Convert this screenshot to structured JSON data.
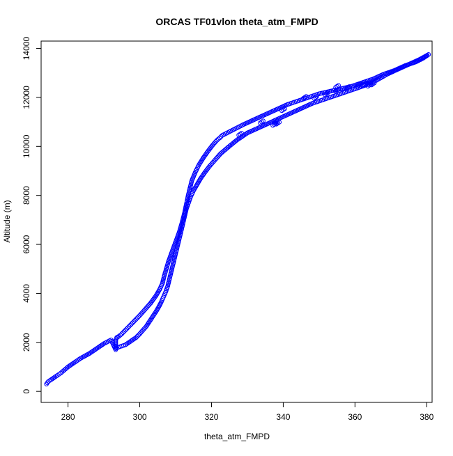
{
  "chart_data": {
    "type": "scatter",
    "title": "ORCAS TF01vlon theta_atm_FMPD",
    "xlabel": "theta_atm_FMPD",
    "ylabel": "Altitude (m)",
    "xlim": [
      272.5,
      381.5
    ],
    "ylim": [
      -450,
      14300
    ],
    "x_ticks": [
      280,
      300,
      320,
      340,
      360,
      380
    ],
    "y_ticks": [
      0,
      2000,
      4000,
      6000,
      8000,
      10000,
      12000,
      14000
    ],
    "grid": false,
    "legend": "none",
    "marker": "open-circle",
    "color": "#0000ff",
    "series": [
      {
        "name": "",
        "x": [
          274.0,
          274.5,
          275.0,
          276.0,
          277.0,
          277.5,
          278.0,
          280.0,
          282.0,
          283.5,
          286.0,
          288.0,
          290.0,
          292.0,
          293.3,
          293.3,
          293.3,
          293.3,
          293.3,
          293.6,
          294.2,
          295.0,
          296.0,
          297.0,
          298.0,
          299.0,
          300.0,
          301.5,
          303.0,
          304.5,
          305.5,
          306.3,
          306.8,
          307.4,
          308.0,
          309.0,
          310.0,
          311.0,
          311.8,
          312.5,
          313.0,
          313.5,
          314.0,
          314.5,
          315.5,
          316.5,
          317.8,
          319.0,
          320.3,
          321.5,
          322.3,
          323.0,
          325.0,
          327.0,
          329.0,
          332.0,
          335.0,
          338.0,
          341.0,
          344.0,
          347.0,
          350.0,
          353.0,
          356.0,
          359.0,
          361.0,
          363.0,
          365.0,
          368.0,
          371.0,
          374.0,
          377.0,
          379.0,
          380.0,
          380.5,
          378.0,
          375.0,
          372.0,
          369.0,
          366.0,
          363.0,
          360.0,
          357.0,
          354.0,
          351.0,
          348.0,
          345.0,
          342.0,
          339.0,
          336.0,
          333.0,
          330.0,
          327.0,
          324.5,
          322.5,
          321.0,
          319.5,
          318.2,
          317.0,
          316.0,
          315.0,
          314.2,
          313.6,
          313.0,
          312.6,
          312.2,
          311.8,
          311.3,
          310.8,
          310.3,
          309.8,
          309.3,
          308.8,
          308.3,
          307.8,
          307.2,
          306.6,
          306.0,
          305.3,
          304.5,
          303.6,
          302.7,
          301.8,
          300.9,
          300.0,
          299.0,
          298.0,
          297.0,
          296.0,
          295.0,
          294.0,
          293.3,
          349.0,
          352.0,
          355.0,
          358.0,
          361.0,
          362.0,
          363.0,
          364.0,
          365.0,
          337.5,
          338.0,
          338.5,
          355.0,
          346.0,
          340.0,
          334.0,
          328.0
        ],
        "y": [
          300,
          400,
          450,
          550,
          650,
          700,
          750,
          1000,
          1200,
          1350,
          1550,
          1750,
          1950,
          2100,
          1700,
          1800,
          1900,
          2000,
          2100,
          2200,
          2250,
          2350,
          2500,
          2650,
          2800,
          2950,
          3100,
          3350,
          3600,
          3900,
          4150,
          4400,
          4700,
          5000,
          5300,
          5700,
          6100,
          6500,
          6900,
          7300,
          7650,
          8000,
          8300,
          8600,
          8950,
          9250,
          9550,
          9800,
          10050,
          10250,
          10350,
          10450,
          10600,
          10750,
          10900,
          11100,
          11300,
          11500,
          11700,
          11850,
          12000,
          12150,
          12250,
          12350,
          12450,
          12550,
          12650,
          12750,
          12950,
          13100,
          13300,
          13450,
          13600,
          13700,
          13750,
          13550,
          13350,
          13150,
          12950,
          12700,
          12500,
          12350,
          12200,
          12050,
          11900,
          11750,
          11550,
          11350,
          11150,
          10950,
          10750,
          10550,
          10250,
          9950,
          9700,
          9450,
          9200,
          8950,
          8700,
          8450,
          8200,
          7950,
          7700,
          7450,
          7200,
          6950,
          6700,
          6400,
          6100,
          5800,
          5500,
          5200,
          4900,
          4600,
          4300,
          4050,
          3850,
          3650,
          3450,
          3250,
          3050,
          2850,
          2650,
          2500,
          2350,
          2200,
          2100,
          2000,
          1900,
          1850,
          1800,
          1750,
          12000,
          12150,
          12300,
          12400,
          12500,
          12500,
          12550,
          12500,
          12550,
          10900,
          11000,
          10950,
          12450,
          12000,
          11500,
          11000,
          10500
        ]
      }
    ]
  }
}
